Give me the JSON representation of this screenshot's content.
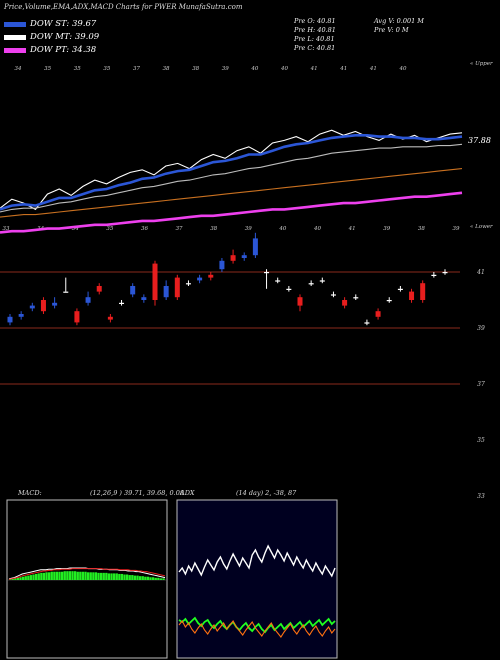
{
  "title": "Price,Volume,EMA,ADX,MACD Charts for PWER MunafaSutra.com",
  "legend": [
    {
      "label": "DOW ST: 39.67",
      "color": "#2b56d6"
    },
    {
      "label": "DOW MT: 39.09",
      "color": "#ffffff"
    },
    {
      "label": "DOW PT: 34.38",
      "color": "#ee40ee"
    }
  ],
  "info": {
    "open": "Pre  O: 40.81",
    "high": "Pre  H: 40.81",
    "low": "Pre  L: 40.81",
    "close": "Pre  C: 40.81",
    "avg_vol": "Avg V: 0.001 M",
    "pre_vol": "Pre  V: 0  M"
  },
  "labels": {
    "upper": "« Upper",
    "lower": "« Lower",
    "last_price": "37.88",
    "macd": "MACD:",
    "macd_vals": "(12,26,9 ) 39.71, 39.68, 0.08",
    "adx": "ADX",
    "adx_vals": "(14  day) 2,  -38,  87"
  },
  "chart_data": [
    {
      "type": "line",
      "name": "price-ema-panel",
      "top_ticks": [
        "34",
        "35",
        "35",
        "35",
        "37",
        "38",
        "38",
        "39",
        "40",
        "40",
        "41",
        "41",
        "41",
        "40"
      ],
      "bottom_ticks": [
        "33",
        "34",
        "34",
        "35",
        "36",
        "37",
        "38",
        "39",
        "40",
        "40",
        "41",
        "39",
        "38",
        "39"
      ],
      "series": [
        {
          "color": "#ffffff",
          "values": [
            35.1,
            35.8,
            35.5,
            35.0,
            36.2,
            36.6,
            36.1,
            36.8,
            37.3,
            37.0,
            37.5,
            37.9,
            38.1,
            37.7,
            38.4,
            38.6,
            38.2,
            38.9,
            39.3,
            39.0,
            39.6,
            39.9,
            39.4,
            40.2,
            40.4,
            40.7,
            40.3,
            40.9,
            41.2,
            40.8,
            41.1,
            40.7,
            40.4,
            40.9,
            40.5,
            40.8,
            40.3,
            40.6,
            40.9,
            41.0
          ]
        },
        {
          "color": "#2b56d6",
          "values": [
            35.0,
            35.3,
            35.4,
            35.3,
            35.6,
            35.9,
            35.9,
            36.2,
            36.5,
            36.6,
            36.9,
            37.1,
            37.4,
            37.5,
            37.8,
            38.0,
            38.1,
            38.4,
            38.7,
            38.8,
            39.0,
            39.3,
            39.3,
            39.6,
            39.9,
            40.1,
            40.2,
            40.4,
            40.6,
            40.7,
            40.8,
            40.8,
            40.7,
            40.7,
            40.6,
            40.6,
            40.5,
            40.5,
            40.6,
            40.7
          ]
        },
        {
          "color": "#bbbbbb",
          "values": [
            34.8,
            35.0,
            35.1,
            35.1,
            35.3,
            35.5,
            35.6,
            35.8,
            36.0,
            36.1,
            36.3,
            36.5,
            36.7,
            36.8,
            37.0,
            37.2,
            37.3,
            37.5,
            37.7,
            37.8,
            38.0,
            38.2,
            38.3,
            38.5,
            38.7,
            38.9,
            39.0,
            39.2,
            39.4,
            39.5,
            39.6,
            39.7,
            39.8,
            39.8,
            39.9,
            39.9,
            39.9,
            40.0,
            40.0,
            40.1
          ]
        },
        {
          "color": "#c87020",
          "values": [
            34.4,
            34.5,
            34.6,
            34.6,
            34.7,
            34.8,
            34.9,
            35.0,
            35.1,
            35.2,
            35.3,
            35.4,
            35.5,
            35.6,
            35.7,
            35.8,
            35.9,
            36.0,
            36.1,
            36.2,
            36.3,
            36.4,
            36.5,
            36.6,
            36.7,
            36.8,
            36.9,
            37.0,
            37.1,
            37.2,
            37.3,
            37.4,
            37.5,
            37.6,
            37.7,
            37.8,
            37.9,
            38.0,
            38.1,
            38.2
          ]
        },
        {
          "color": "#ee40ee",
          "values": [
            33.2,
            33.3,
            33.3,
            33.4,
            33.5,
            33.5,
            33.6,
            33.7,
            33.8,
            33.8,
            33.9,
            34.0,
            34.1,
            34.1,
            34.2,
            34.3,
            34.4,
            34.5,
            34.5,
            34.6,
            34.7,
            34.8,
            34.9,
            35.0,
            35.0,
            35.1,
            35.2,
            35.3,
            35.4,
            35.5,
            35.5,
            35.6,
            35.7,
            35.8,
            35.9,
            36.0,
            36.0,
            36.1,
            36.2,
            36.3
          ]
        }
      ]
    },
    {
      "type": "candlestick",
      "name": "price-panel",
      "yticks": [
        "41",
        "39",
        "37",
        "35",
        "33"
      ],
      "ylim": [
        32.5,
        42.5
      ],
      "candles": [
        {
          "o": 39.2,
          "c": 39.4,
          "h": 39.5,
          "l": 39.1
        },
        {
          "o": 39.4,
          "c": 39.5,
          "h": 39.6,
          "l": 39.3
        },
        {
          "o": 39.7,
          "c": 39.8,
          "h": 39.9,
          "l": 39.6
        },
        {
          "o": 40.0,
          "c": 39.6,
          "h": 40.1,
          "l": 39.5
        },
        {
          "o": 39.8,
          "c": 39.9,
          "h": 40.1,
          "l": 39.7
        },
        {
          "o": 40.3,
          "c": 40.3,
          "h": 40.8,
          "l": 40.3
        },
        {
          "o": 39.6,
          "c": 39.2,
          "h": 39.7,
          "l": 39.1
        },
        {
          "o": 39.9,
          "c": 40.1,
          "h": 40.3,
          "l": 39.8
        },
        {
          "o": 40.5,
          "c": 40.3,
          "h": 40.6,
          "l": 40.2
        },
        {
          "o": 39.4,
          "c": 39.3,
          "h": 39.5,
          "l": 39.2
        },
        {
          "o": 39.9,
          "c": 39.9,
          "h": 40.0,
          "l": 39.8
        },
        {
          "o": 40.2,
          "c": 40.5,
          "h": 40.6,
          "l": 40.1
        },
        {
          "o": 40.0,
          "c": 40.1,
          "h": 40.2,
          "l": 39.9
        },
        {
          "o": 41.3,
          "c": 40.0,
          "h": 41.4,
          "l": 39.8
        },
        {
          "o": 40.1,
          "c": 40.5,
          "h": 40.7,
          "l": 40.0
        },
        {
          "o": 40.8,
          "c": 40.1,
          "h": 40.9,
          "l": 40.0
        },
        {
          "o": 40.6,
          "c": 40.6,
          "h": 40.7,
          "l": 40.5
        },
        {
          "o": 40.7,
          "c": 40.8,
          "h": 40.9,
          "l": 40.6
        },
        {
          "o": 40.9,
          "c": 40.8,
          "h": 41.0,
          "l": 40.7
        },
        {
          "o": 41.1,
          "c": 41.4,
          "h": 41.5,
          "l": 41.0
        },
        {
          "o": 41.6,
          "c": 41.4,
          "h": 41.8,
          "l": 41.3
        },
        {
          "o": 41.5,
          "c": 41.6,
          "h": 41.7,
          "l": 41.4
        },
        {
          "o": 41.6,
          "c": 42.2,
          "h": 42.4,
          "l": 41.5
        },
        {
          "o": 41.0,
          "c": 41.0,
          "h": 41.1,
          "l": 40.4
        },
        {
          "o": 40.7,
          "c": 40.7,
          "h": 40.8,
          "l": 40.6
        },
        {
          "o": 40.4,
          "c": 40.4,
          "h": 40.5,
          "l": 40.3
        },
        {
          "o": 40.1,
          "c": 39.8,
          "h": 40.2,
          "l": 39.6
        },
        {
          "o": 40.6,
          "c": 40.6,
          "h": 40.7,
          "l": 40.5
        },
        {
          "o": 40.7,
          "c": 40.7,
          "h": 40.8,
          "l": 40.6
        },
        {
          "o": 40.2,
          "c": 40.2,
          "h": 40.3,
          "l": 40.1
        },
        {
          "o": 40.0,
          "c": 39.8,
          "h": 40.1,
          "l": 39.7
        },
        {
          "o": 40.1,
          "c": 40.1,
          "h": 40.2,
          "l": 40.0
        },
        {
          "o": 39.2,
          "c": 39.2,
          "h": 39.3,
          "l": 39.1
        },
        {
          "o": 39.6,
          "c": 39.4,
          "h": 39.7,
          "l": 39.3
        },
        {
          "o": 40.0,
          "c": 40.0,
          "h": 40.1,
          "l": 39.9
        },
        {
          "o": 40.4,
          "c": 40.4,
          "h": 40.5,
          "l": 40.3
        },
        {
          "o": 40.3,
          "c": 40.0,
          "h": 40.4,
          "l": 39.9
        },
        {
          "o": 40.6,
          "c": 40.0,
          "h": 40.7,
          "l": 39.9
        },
        {
          "o": 40.9,
          "c": 40.9,
          "h": 41.0,
          "l": 40.8
        },
        {
          "o": 41.0,
          "c": 41.0,
          "h": 41.1,
          "l": 40.9
        }
      ]
    },
    {
      "type": "bar",
      "name": "macd-panel",
      "histogram": [
        1,
        2,
        3,
        4,
        5,
        6,
        7,
        8,
        9,
        10,
        11,
        12,
        13,
        13,
        14,
        14,
        15,
        15,
        15,
        15,
        15,
        16,
        16,
        16,
        16,
        16,
        15,
        15,
        15,
        15,
        14,
        14,
        14,
        14,
        13,
        13,
        13,
        13,
        12,
        12,
        12,
        12,
        11,
        11,
        10,
        10,
        9,
        9,
        8,
        8,
        7,
        7,
        6,
        6,
        5,
        5,
        4,
        4,
        3,
        3
      ],
      "macd_line": [
        2,
        3,
        4,
        6,
        8,
        10,
        11,
        12,
        13,
        14,
        15,
        16,
        17,
        17,
        17,
        18,
        18,
        18,
        19,
        19,
        19,
        19,
        19,
        20,
        20,
        20,
        20,
        20,
        20,
        20,
        19,
        19,
        19,
        19,
        18,
        18,
        18,
        18,
        17,
        17,
        17,
        17,
        16,
        16,
        16,
        15,
        15,
        15,
        14,
        14,
        13,
        12,
        11,
        10,
        9,
        8,
        7,
        6,
        5,
        4
      ],
      "signal_line": [
        1,
        2,
        3,
        4,
        5,
        7,
        8,
        9,
        10,
        11,
        12,
        13,
        14,
        15,
        15,
        16,
        16,
        17,
        17,
        17,
        18,
        18,
        18,
        18,
        19,
        19,
        19,
        19,
        19,
        19,
        19,
        19,
        19,
        19,
        19,
        19,
        18,
        18,
        18,
        18,
        18,
        18,
        17,
        17,
        17,
        17,
        16,
        16,
        16,
        15,
        15,
        14,
        14,
        13,
        12,
        11,
        10,
        9,
        8,
        7
      ]
    },
    {
      "type": "line",
      "name": "adx-panel",
      "series": [
        {
          "color": "#ffffff",
          "values": [
            38,
            42,
            36,
            44,
            39,
            47,
            41,
            35,
            43,
            50,
            45,
            40,
            48,
            53,
            46,
            41,
            49,
            56,
            50,
            44,
            52,
            47,
            42,
            55,
            60,
            53,
            48,
            57,
            64,
            58,
            52,
            60,
            55,
            49,
            57,
            51,
            45,
            53,
            47,
            42,
            50,
            44,
            39,
            47,
            41,
            36,
            44,
            39,
            34,
            42
          ]
        },
        {
          "color": "#20ff20",
          "values": [
            -20,
            -22,
            -19,
            -24,
            -21,
            -18,
            -23,
            -26,
            -22,
            -20,
            -25,
            -28,
            -24,
            -21,
            -26,
            -29,
            -25,
            -22,
            -27,
            -30,
            -26,
            -23,
            -28,
            -31,
            -27,
            -24,
            -29,
            -32,
            -28,
            -25,
            -30,
            -27,
            -24,
            -29,
            -26,
            -23,
            -28,
            -25,
            -22,
            -27,
            -24,
            -21,
            -26,
            -23,
            -20,
            -25,
            -22,
            -19,
            -24,
            -21
          ]
        },
        {
          "color": "#ff7010",
          "values": [
            -22,
            -18,
            -24,
            -20,
            -26,
            -30,
            -25,
            -21,
            -27,
            -31,
            -26,
            -22,
            -28,
            -24,
            -20,
            -26,
            -22,
            -18,
            -24,
            -28,
            -32,
            -27,
            -23,
            -19,
            -25,
            -29,
            -33,
            -28,
            -24,
            -20,
            -26,
            -30,
            -34,
            -29,
            -25,
            -21,
            -27,
            -31,
            -26,
            -22,
            -28,
            -32,
            -27,
            -23,
            -29,
            -33,
            -28,
            -24,
            -30,
            -26
          ]
        }
      ]
    }
  ]
}
